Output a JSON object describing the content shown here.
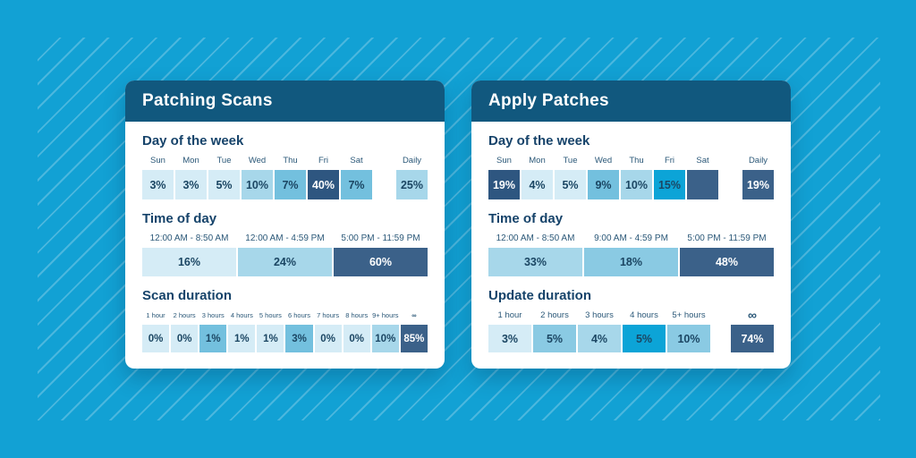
{
  "palette": {
    "page_bg": "#12a1d4",
    "stripe": "rgba(255,255,255,0.24)",
    "header_bg": "#11587e",
    "heading_text": "#16436a",
    "label_text": "#2b5878",
    "cell_text_dark": "#1b4663",
    "tones": {
      "lightest": "#d5ecf6",
      "light": "#a7d7ea",
      "mediumlight": "#8acae3",
      "medium": "#73c0de",
      "cyan": "#0ca4d7",
      "navy": "#3b6189",
      "navydark": "#2e5680"
    }
  },
  "cards": [
    {
      "title": "Patching Scans",
      "sections": [
        {
          "heading": "Day of the week",
          "layout": "days",
          "cells": [
            {
              "label": "Sun",
              "value": "3%",
              "tone": "lightest"
            },
            {
              "label": "Mon",
              "value": "3%",
              "tone": "lightest"
            },
            {
              "label": "Tue",
              "value": "5%",
              "tone": "lightest"
            },
            {
              "label": "Wed",
              "value": "10%",
              "tone": "light"
            },
            {
              "label": "Thu",
              "value": "7%",
              "tone": "medium"
            },
            {
              "label": "Fri",
              "value": "40%",
              "tone": "navydark",
              "text": "white"
            },
            {
              "label": "Sat",
              "value": "7%",
              "tone": "medium"
            }
          ],
          "detached": [
            {
              "label": "Daily",
              "value": "25%",
              "tone": "light"
            }
          ]
        },
        {
          "heading": "Time of day",
          "layout": "times",
          "cells": [
            {
              "label": "12:00 AM - 8:50 AM",
              "value": "16%",
              "tone": "lightest"
            },
            {
              "label": "12:00 AM - 4:59 PM",
              "value": "24%",
              "tone": "light"
            },
            {
              "label": "5:00 PM - 11:59 PM",
              "value": "60%",
              "tone": "navy",
              "text": "white"
            }
          ],
          "detached": []
        },
        {
          "heading": "Scan duration",
          "layout": "dur10",
          "cells": [
            {
              "label": "1 hour",
              "value": "0%",
              "tone": "lightest"
            },
            {
              "label": "2 hours",
              "value": "0%",
              "tone": "lightest"
            },
            {
              "label": "3 hours",
              "value": "1%",
              "tone": "medium"
            },
            {
              "label": "4 hours",
              "value": "1%",
              "tone": "lightest"
            },
            {
              "label": "5 hours",
              "value": "1%",
              "tone": "lightest"
            },
            {
              "label": "6 hours",
              "value": "3%",
              "tone": "medium"
            },
            {
              "label": "7 hours",
              "value": "0%",
              "tone": "lightest"
            },
            {
              "label": "8 hours",
              "value": "0%",
              "tone": "lightest"
            },
            {
              "label": "9+ hours",
              "value": "10%",
              "tone": "light"
            },
            {
              "label": "∞",
              "value": "85%",
              "tone": "navy",
              "text": "white",
              "symbol": true
            }
          ],
          "detached": []
        }
      ]
    },
    {
      "title": "Apply Patches",
      "sections": [
        {
          "heading": "Day of the week",
          "layout": "days",
          "cells": [
            {
              "label": "Sun",
              "value": "19%",
              "tone": "navydark",
              "text": "white"
            },
            {
              "label": "Mon",
              "value": "4%",
              "tone": "lightest"
            },
            {
              "label": "Tue",
              "value": "5%",
              "tone": "lightest"
            },
            {
              "label": "Wed",
              "value": "9%",
              "tone": "medium"
            },
            {
              "label": "Thu",
              "value": "10%",
              "tone": "light"
            },
            {
              "label": "Fri",
              "value": "15%",
              "tone": "cyan"
            },
            {
              "label": "Sat",
              "value": "",
              "tone": "navy"
            }
          ],
          "detached": [
            {
              "label": "Daily",
              "value": "19%",
              "tone": "navy",
              "text": "white"
            }
          ]
        },
        {
          "heading": "Time of day",
          "layout": "times",
          "cells": [
            {
              "label": "12:00 AM - 8:50 AM",
              "value": "33%",
              "tone": "light"
            },
            {
              "label": "9:00 AM - 4:59 PM",
              "value": "18%",
              "tone": "mediumlight"
            },
            {
              "label": "5:00 PM - 11:59 PM",
              "value": "48%",
              "tone": "navy",
              "text": "white"
            }
          ],
          "detached": []
        },
        {
          "heading": "Update duration",
          "layout": "dur5",
          "cells": [
            {
              "label": "1 hour",
              "value": "3%",
              "tone": "lightest"
            },
            {
              "label": "2 hours",
              "value": "5%",
              "tone": "mediumlight"
            },
            {
              "label": "3 hours",
              "value": "4%",
              "tone": "light"
            },
            {
              "label": "4 hours",
              "value": "5%",
              "tone": "cyan"
            },
            {
              "label": "5+ hours",
              "value": "10%",
              "tone": "mediumlight"
            }
          ],
          "detached": [
            {
              "label": "∞",
              "value": "74%",
              "tone": "navy",
              "text": "white",
              "symbol": true
            }
          ]
        }
      ]
    }
  ],
  "chart_data": [
    {
      "type": "heatmap",
      "title": "Patching Scans",
      "groups": [
        {
          "label": "Day of the week",
          "categories": [
            "Sun",
            "Mon",
            "Tue",
            "Wed",
            "Thu",
            "Fri",
            "Sat",
            "Daily"
          ],
          "values": [
            3,
            3,
            5,
            10,
            7,
            40,
            7,
            25
          ],
          "unit": "%"
        },
        {
          "label": "Time of day",
          "categories": [
            "12:00 AM - 8:50 AM",
            "12:00 AM - 4:59 PM",
            "5:00 PM - 11:59 PM"
          ],
          "values": [
            16,
            24,
            60
          ],
          "unit": "%"
        },
        {
          "label": "Scan duration",
          "categories": [
            "1 hour",
            "2 hours",
            "3 hours",
            "4 hours",
            "5 hours",
            "6 hours",
            "7 hours",
            "8 hours",
            "9+ hours",
            "∞"
          ],
          "values": [
            0,
            0,
            1,
            1,
            1,
            3,
            0,
            0,
            10,
            85
          ],
          "unit": "%"
        }
      ]
    },
    {
      "type": "heatmap",
      "title": "Apply Patches",
      "groups": [
        {
          "label": "Day of the week",
          "categories": [
            "Sun",
            "Mon",
            "Tue",
            "Wed",
            "Thu",
            "Fri",
            "Sat",
            "Daily"
          ],
          "values": [
            19,
            4,
            5,
            9,
            10,
            15,
            null,
            19
          ],
          "unit": "%"
        },
        {
          "label": "Time of day",
          "categories": [
            "12:00 AM - 8:50 AM",
            "9:00 AM - 4:59 PM",
            "5:00 PM - 11:59 PM"
          ],
          "values": [
            33,
            18,
            48
          ],
          "unit": "%"
        },
        {
          "label": "Update duration",
          "categories": [
            "1 hour",
            "2 hours",
            "3 hours",
            "4 hours",
            "5+ hours",
            "∞"
          ],
          "values": [
            3,
            5,
            4,
            5,
            10,
            74
          ],
          "unit": "%"
        }
      ]
    }
  ]
}
